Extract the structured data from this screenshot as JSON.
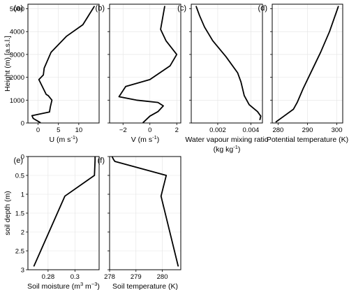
{
  "chart_data": [
    {
      "type": "line",
      "panel_label": "(a)",
      "xlabel": "U (m s",
      "xlabel_sup": "-1",
      "xlabel_end": ")",
      "ylabel": "Height (m) [a.s.l.]",
      "xlim": [
        -2.5,
        15
      ],
      "ylim": [
        0,
        5200
      ],
      "yreverse": false,
      "grid": true,
      "xticks": [
        0,
        5,
        10
      ],
      "xtick_labels": [
        "0",
        "5",
        "10"
      ],
      "yticks": [
        0,
        1000,
        2000,
        3000,
        4000,
        5000
      ],
      "ytick_labels": [
        "0",
        "1000",
        "2000",
        "3000",
        "4000",
        "5000"
      ],
      "x": [
        0.5,
        -1.2,
        -1.5,
        2.8,
        3.0,
        3.4,
        2.5,
        2.0,
        0.2,
        1.3,
        1.5,
        3.2,
        7.0,
        11.0,
        13.8
      ],
      "y": [
        20,
        200,
        320,
        480,
        700,
        1000,
        1200,
        1250,
        1900,
        2100,
        2400,
        3100,
        3800,
        4300,
        5100
      ]
    },
    {
      "type": "line",
      "panel_label": "(b)",
      "xlabel": "V (m s",
      "xlabel_sup": "-1",
      "xlabel_end": ")",
      "xlim": [
        -3,
        2.3
      ],
      "ylim": [
        0,
        5200
      ],
      "yreverse": false,
      "grid": true,
      "xticks": [
        -2,
        0,
        2
      ],
      "xtick_labels": [
        "−2",
        "0",
        "2"
      ],
      "yticks": [
        0,
        1000,
        2000,
        3000,
        4000,
        5000
      ],
      "ytick_labels": [],
      "x": [
        -0.5,
        0,
        0.6,
        1.0,
        0.6,
        -1.0,
        -2.3,
        -1.8,
        0,
        1.5,
        2.0,
        1.2,
        0.8,
        1.1
      ],
      "y": [
        20,
        300,
        500,
        750,
        900,
        1000,
        1150,
        1600,
        1900,
        2500,
        3000,
        3600,
        4100,
        5100
      ]
    },
    {
      "type": "line",
      "panel_label": "(c)",
      "xlabel": "Water vapour mixing ratio",
      "xlabel2": "(kg kg",
      "xlabel2_sup": "-1",
      "xlabel2_end": ")",
      "xlim": [
        0.0004,
        0.0047
      ],
      "ylim": [
        0,
        5200
      ],
      "yreverse": false,
      "grid": true,
      "xticks": [
        0.002,
        0.004
      ],
      "xtick_labels": [
        "0.002",
        "0.004"
      ],
      "yticks": [
        0,
        1000,
        2000,
        3000,
        4000,
        5000
      ],
      "ytick_labels": [],
      "x": [
        0.00455,
        0.0046,
        0.0044,
        0.0039,
        0.0036,
        0.0034,
        0.0032,
        0.0025,
        0.0017,
        0.0012,
        0.0009,
        0.0007
      ],
      "y": [
        150,
        300,
        500,
        800,
        1200,
        1800,
        2200,
        2900,
        3600,
        4200,
        4700,
        5100
      ]
    },
    {
      "type": "line",
      "panel_label": "(d)",
      "xlabel": "Potential temperature (K)",
      "xlim": [
        278,
        302
      ],
      "ylim": [
        0,
        5200
      ],
      "yreverse": false,
      "grid": true,
      "xticks": [
        280,
        290,
        300
      ],
      "xtick_labels": [
        "280",
        "290",
        "300"
      ],
      "yticks": [
        0,
        1000,
        2000,
        3000,
        4000,
        5000
      ],
      "ytick_labels": [],
      "x": [
        279.3,
        282,
        285.2,
        286.5,
        288.5,
        291.5,
        294.5,
        297.5,
        300.5
      ],
      "y": [
        50,
        300,
        600,
        900,
        1500,
        2300,
        3100,
        4000,
        5100
      ]
    },
    {
      "type": "line",
      "panel_label": "(e)",
      "xlabel": "Soil moisture (m",
      "xlabel_sup": "3",
      "xlabel_mid": " m",
      "xlabel_sup2": "−3",
      "xlabel_end": ")",
      "ylabel": "soil depth (m)",
      "xlim": [
        0.265,
        0.318
      ],
      "ylim": [
        0,
        3
      ],
      "yreverse": true,
      "grid": true,
      "xticks": [
        0.28,
        0.3
      ],
      "xtick_labels": [
        "0.28",
        "0.3"
      ],
      "yticks": [
        0,
        0.5,
        1,
        1.5,
        2,
        2.5,
        3
      ],
      "ytick_labels": [
        "0",
        "0.5",
        "1",
        "1.5",
        "2",
        "2.5",
        "3"
      ],
      "x": [
        0.315,
        0.315,
        0.3145,
        0.2925,
        0.2695
      ],
      "y": [
        0.01,
        0.1,
        0.5,
        1.05,
        2.9
      ]
    },
    {
      "type": "line",
      "panel_label": "(f)",
      "xlabel": "Soil temperature (K)",
      "xlim": [
        278.0,
        280.7
      ],
      "ylim": [
        0,
        3
      ],
      "yreverse": true,
      "grid": true,
      "xticks": [
        278,
        279,
        280
      ],
      "xtick_labels": [
        "278",
        "279",
        "280"
      ],
      "yticks": [
        0,
        0.5,
        1,
        1.5,
        2,
        2.5,
        3
      ],
      "ytick_labels": [],
      "x": [
        278.1,
        278.15,
        278.2,
        280.15,
        279.95,
        280.6
      ],
      "y": [
        0.01,
        0.08,
        0.13,
        0.5,
        1.05,
        2.9
      ]
    }
  ]
}
